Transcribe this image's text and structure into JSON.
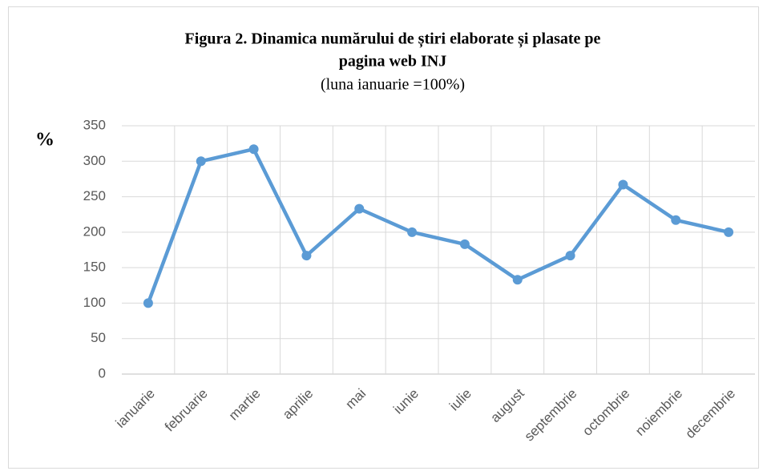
{
  "chart_data": {
    "type": "line",
    "title": [
      "Figura 2. Dinamica numărului  de știri elaborate și plasate pe",
      "pagina web INJ"
    ],
    "subtitle": "(luna ianuarie =100%)",
    "y_label": "%",
    "categories": [
      "ianuarie",
      "februarie",
      "martie",
      "aprilie",
      "mai",
      "iunie",
      "iulie",
      "august",
      "septembrie",
      "octombrie",
      "noiembrie",
      "decembrie"
    ],
    "series": [
      {
        "color": "#5b9bd5",
        "values": [
          100,
          300,
          317,
          167,
          233,
          200,
          183,
          133,
          167,
          267,
          217,
          200
        ]
      }
    ],
    "ylim": [
      0,
      350
    ],
    "yticks": [
      0,
      50,
      100,
      150,
      200,
      250,
      300,
      350
    ],
    "grid": true
  }
}
